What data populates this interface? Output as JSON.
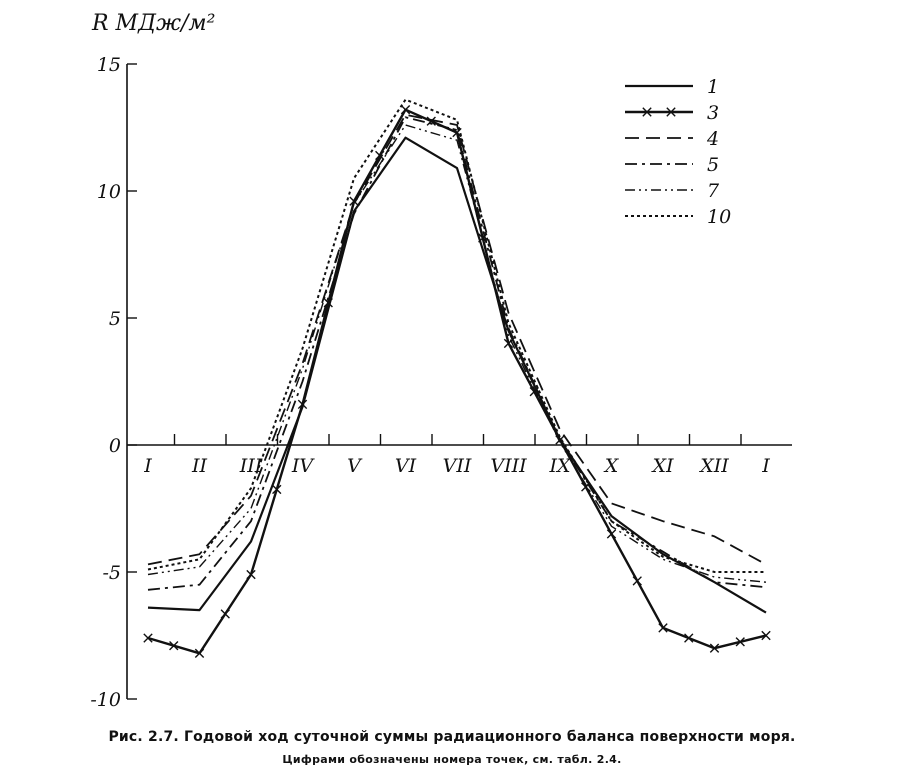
{
  "chart_data": {
    "type": "line",
    "ylabel": "R МДж/м²",
    "ylim": [
      -10,
      15
    ],
    "yticks": [
      15,
      10,
      5,
      0,
      -5,
      -10
    ],
    "ytick_labels": [
      "15",
      "10",
      "5",
      "0",
      "-5",
      "-10"
    ],
    "categories": [
      "I",
      "II",
      "III",
      "IV",
      "V",
      "VI",
      "VII",
      "VIII",
      "IX",
      "X",
      "XI",
      "XII",
      "I"
    ],
    "series": [
      {
        "name": "1",
        "style": "solid",
        "values": [
          -6.4,
          -6.5,
          -3.8,
          1.5,
          9.2,
          12.1,
          10.9,
          4.5,
          0.2,
          -2.8,
          -4.3,
          -5.4,
          -6.6
        ]
      },
      {
        "name": "3",
        "style": "solid-cross",
        "values": [
          -7.6,
          -8.2,
          -5.1,
          1.6,
          9.6,
          13.2,
          12.3,
          4.0,
          0.2,
          -3.5,
          -7.2,
          -8.0,
          -7.5
        ]
      },
      {
        "name": "4",
        "style": "long-dash",
        "values": [
          -4.7,
          -4.3,
          -2.0,
          3.2,
          9.5,
          13.0,
          12.6,
          5.2,
          0.6,
          -2.3,
          -3.0,
          -3.6,
          -4.7
        ]
      },
      {
        "name": "5",
        "style": "dash-dot",
        "values": [
          -5.7,
          -5.5,
          -3.0,
          2.5,
          9.1,
          12.9,
          12.4,
          4.6,
          0.2,
          -3.0,
          -4.2,
          -5.4,
          -5.6
        ]
      },
      {
        "name": "7",
        "style": "dash-dot-dot",
        "values": [
          -5.1,
          -4.8,
          -2.5,
          3.0,
          9.5,
          12.6,
          12.0,
          4.3,
          0.1,
          -3.2,
          -4.5,
          -5.2,
          -5.4
        ]
      },
      {
        "name": "10",
        "style": "dotted",
        "values": [
          -4.9,
          -4.5,
          -1.7,
          3.8,
          10.5,
          13.6,
          12.8,
          4.8,
          0.3,
          -3.0,
          -4.4,
          -5.0,
          -5.0
        ]
      }
    ],
    "legend": [
      "1",
      "3",
      "4",
      "5",
      "7",
      "10"
    ],
    "legend_placement": "top-right",
    "grid": false
  },
  "caption": {
    "main": "Рис. 2.7. Годовой ход суточной суммы радиационного баланса поверхности моря.",
    "sub": "Цифрами обозначены номера точек, см. табл. 2.4."
  }
}
